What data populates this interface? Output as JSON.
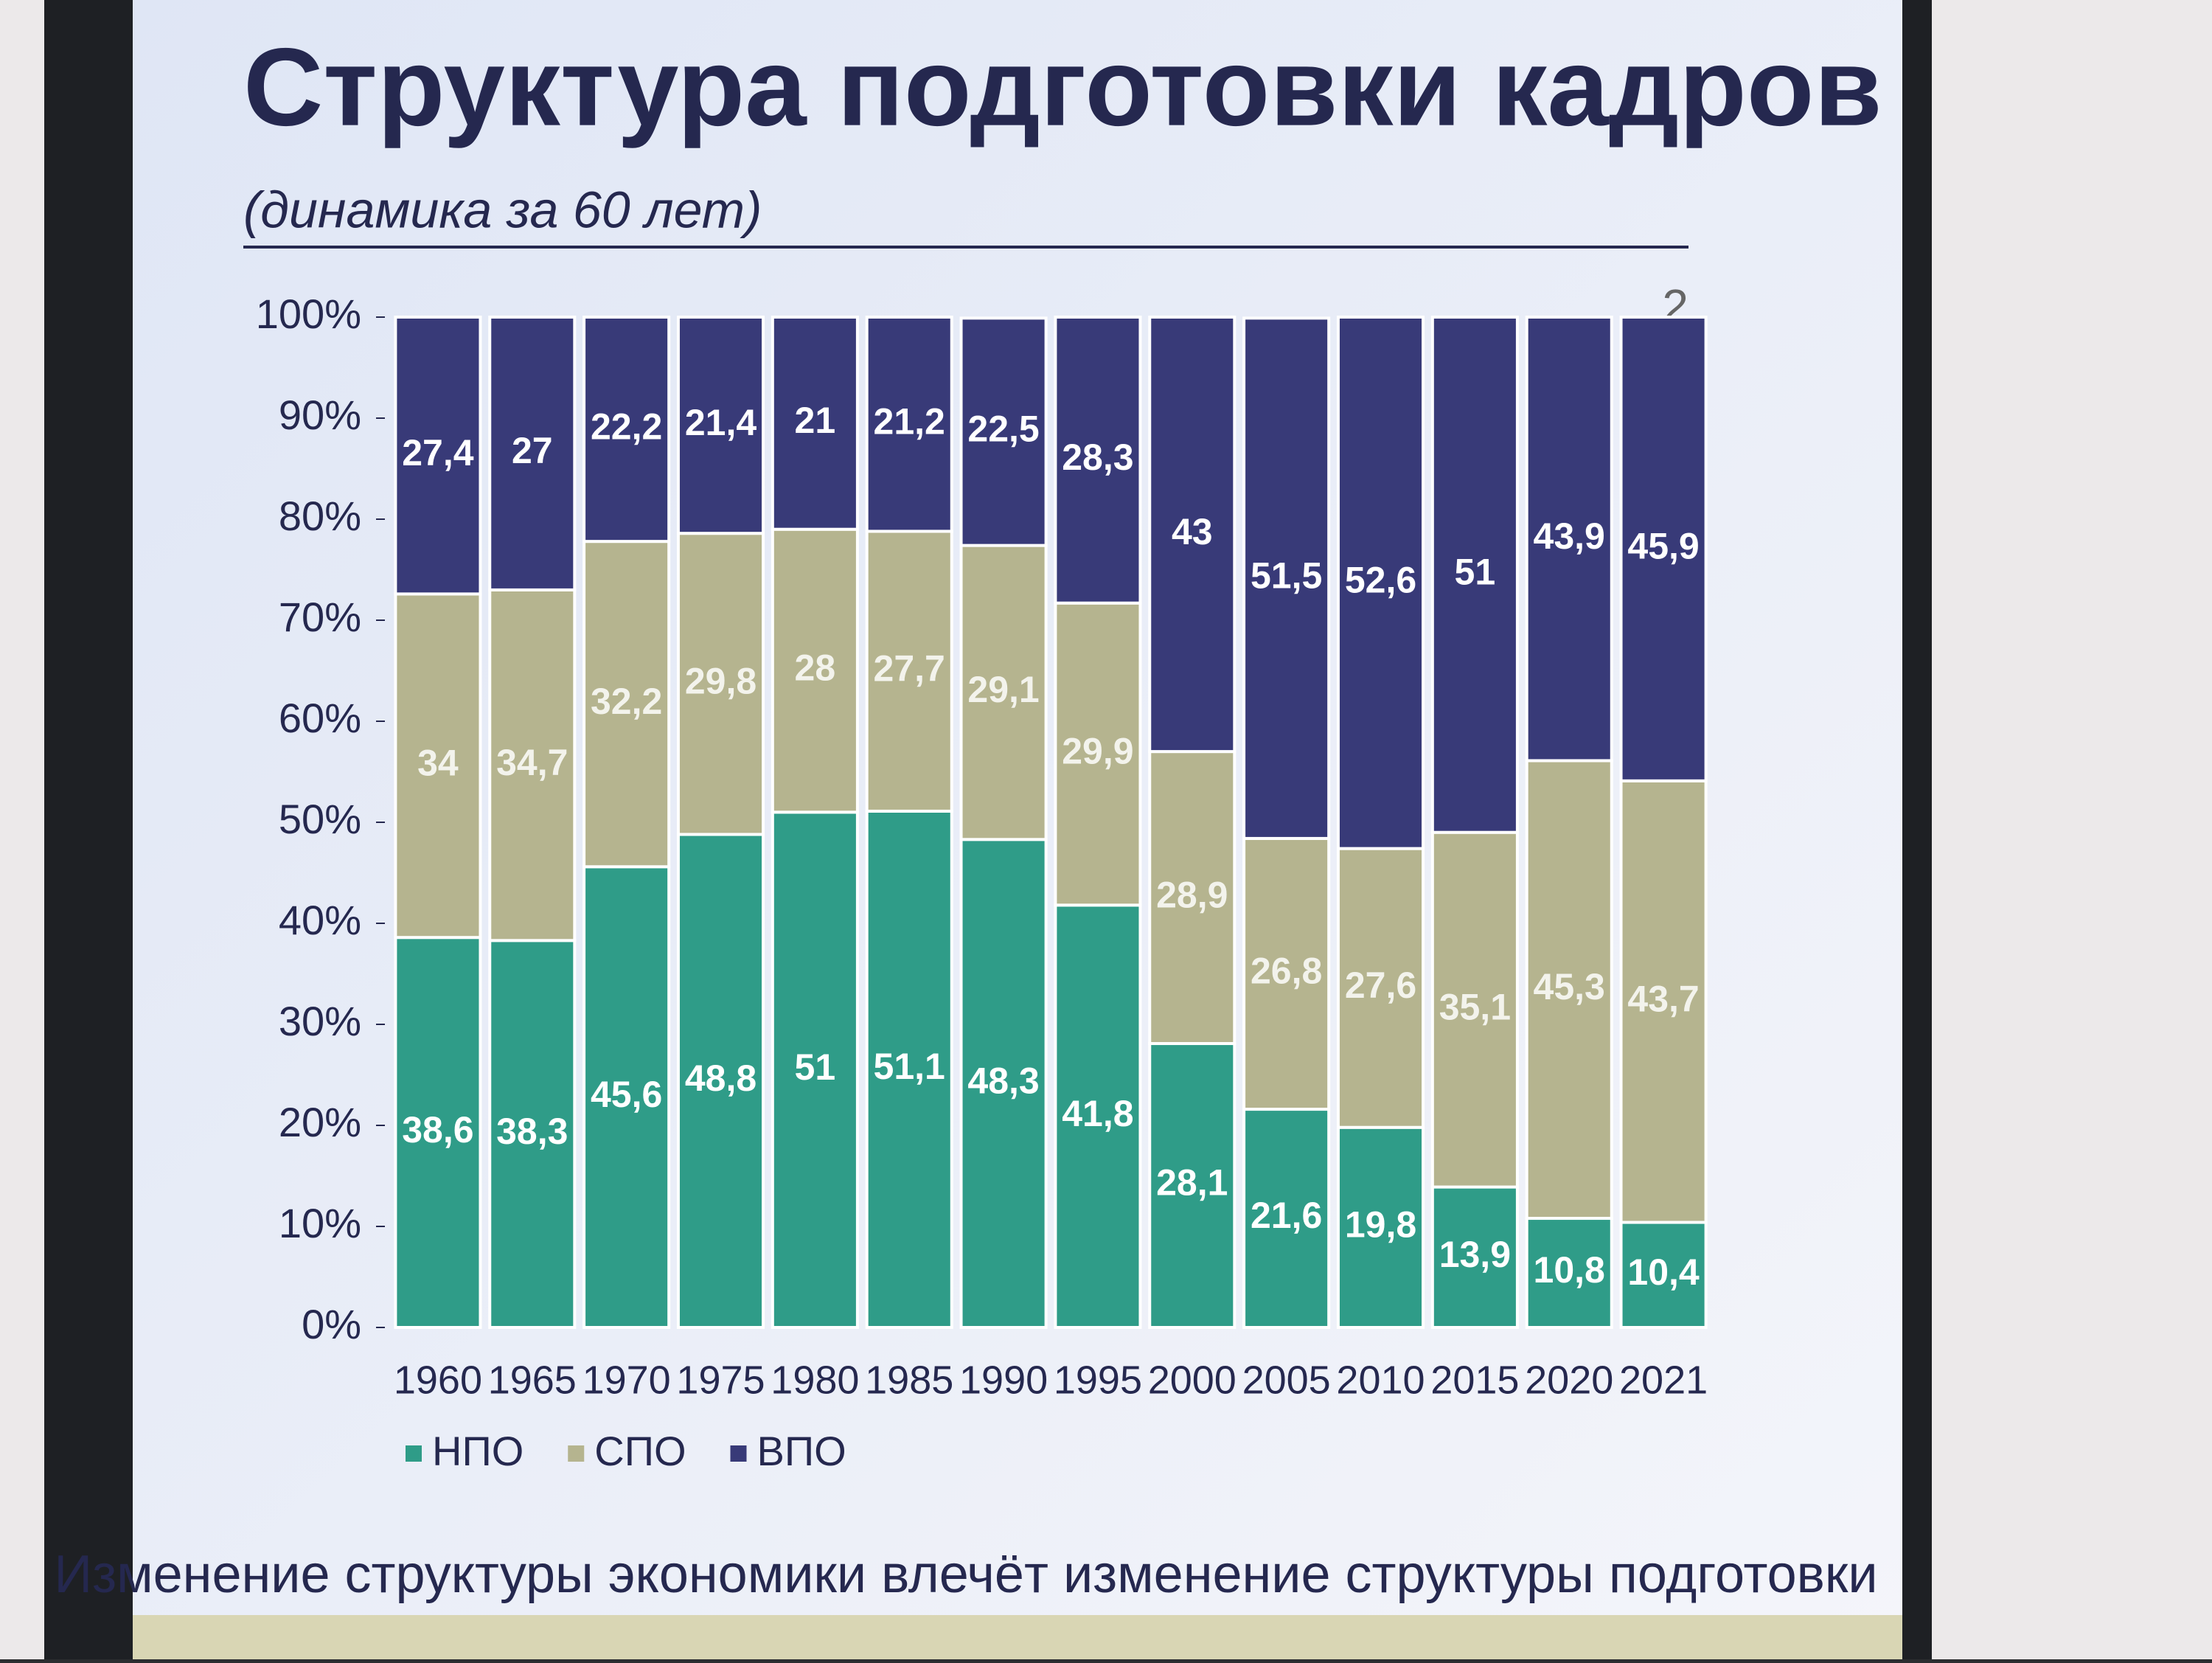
{
  "chart_data": {
    "type": "stacked_bar",
    "title": "Структура подготовки кадров",
    "subtitle": "(динамика за 60 лет)",
    "page_number": "2",
    "footer": "Изменение структуры экономики влечёт изменение структуры подготовки",
    "categories": [
      "1960",
      "1965",
      "1970",
      "1975",
      "1980",
      "1985",
      "1990",
      "1995",
      "2000",
      "2005",
      "2010",
      "2015",
      "2020",
      "2021"
    ],
    "series": [
      {
        "name": "НПО",
        "color": "#2f9c88",
        "values": [
          38.6,
          38.3,
          45.6,
          48.8,
          51,
          51.1,
          48.3,
          41.8,
          28.1,
          21.6,
          19.8,
          13.9,
          10.8,
          10.4
        ],
        "value_labels": [
          "38,6",
          "38,3",
          "45,6",
          "48,8",
          "51",
          "51,1",
          "48,3",
          "41,8",
          "28,1",
          "21,6",
          "19,8",
          "13,9",
          "10,8",
          "10,4"
        ]
      },
      {
        "name": "СПО",
        "color": "#b5b48f",
        "values": [
          34,
          34.7,
          32.2,
          29.8,
          28,
          27.7,
          29.1,
          29.9,
          28.9,
          26.8,
          27.6,
          35.1,
          45.3,
          43.7
        ],
        "value_labels": [
          "34",
          "34,7",
          "32,2",
          "29,8",
          "28",
          "27,7",
          "29,1",
          "29,9",
          "28,9",
          "26,8",
          "27,6",
          "35,1",
          "45,3",
          "43,7"
        ]
      },
      {
        "name": "ВПО",
        "color": "#383a78",
        "values": [
          27.4,
          27,
          22.2,
          21.4,
          21,
          21.2,
          22.5,
          28.3,
          43,
          51.5,
          52.6,
          51,
          43.9,
          45.9
        ],
        "value_labels": [
          "27,4",
          "27",
          "22,2",
          "21,4",
          "21",
          "21,2",
          "22,5",
          "28,3",
          "43",
          "51,5",
          "52,6",
          "51",
          "43,9",
          "45,9"
        ]
      }
    ],
    "ylim": [
      0,
      100
    ],
    "yticks": [
      {
        "value": 0,
        "label": "0%"
      },
      {
        "value": 10,
        "label": "10%"
      },
      {
        "value": 20,
        "label": "20%"
      },
      {
        "value": 30,
        "label": "30%"
      },
      {
        "value": 40,
        "label": "40%"
      },
      {
        "value": 50,
        "label": "50%"
      },
      {
        "value": 60,
        "label": "60%"
      },
      {
        "value": 70,
        "label": "70%"
      },
      {
        "value": 80,
        "label": "80%"
      },
      {
        "value": 90,
        "label": "90%"
      },
      {
        "value": 100,
        "label": "100%"
      }
    ],
    "legend": "bottom-left"
  }
}
